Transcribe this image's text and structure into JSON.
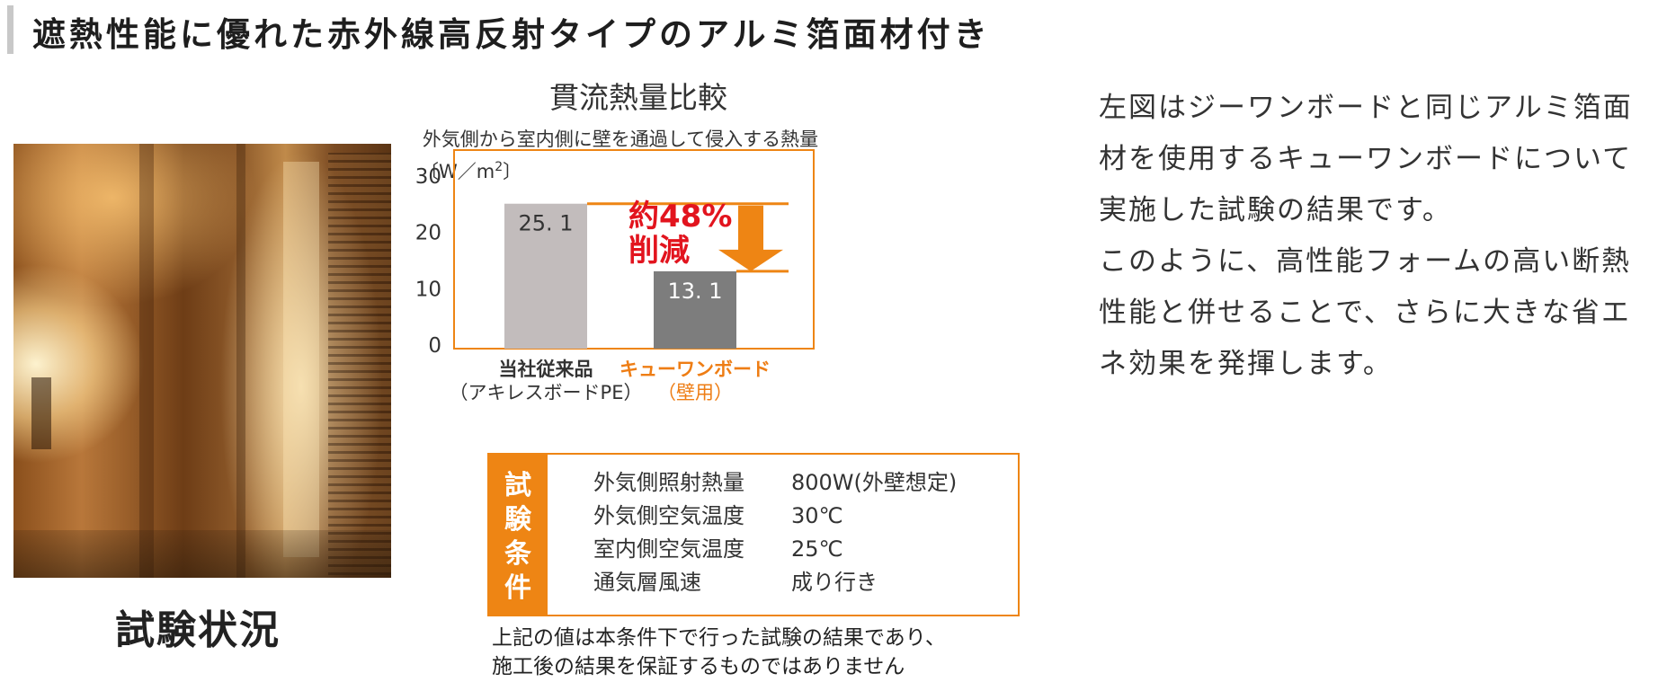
{
  "header": {
    "title": "遮熱性能に優れた赤外線高反射タイプのアルミ箔面材付き"
  },
  "photo": {
    "caption": "試験状況"
  },
  "chart_data": {
    "type": "bar",
    "title": "貫流熱量比較",
    "subtitle": "外気側から室内側に壁を通過して侵入する熱量",
    "ylabel_parts": {
      "a": "〔W／m",
      "b": "2",
      "c": "〕"
    },
    "ylim": [
      0,
      30
    ],
    "yticks": [
      "30",
      "20",
      "10",
      "0"
    ],
    "bars": [
      {
        "label_line1": "当社従来品",
        "label_line2": "（アキレスボードPE）",
        "value": 25.1,
        "value_label": "25. 1",
        "color": "#c2bcbc",
        "label_color": "#333333"
      },
      {
        "label_line1": "キューワンボード",
        "label_line2": "（壁用）",
        "value": 13.1,
        "value_label": "13. 1",
        "color": "#7d7d7d",
        "label_color": "#ee7d14"
      }
    ],
    "reduction": {
      "line1": "約48%",
      "line2": "削減",
      "color": "#e2141e",
      "arrow_color": "#ee8514"
    },
    "accent_color": "#ee8514"
  },
  "conditions": {
    "title_chars": [
      "試",
      "験",
      "条",
      "件"
    ],
    "rows": [
      {
        "label": "外気側照射熱量",
        "value": "800W(外壁想定)"
      },
      {
        "label": "外気側空気温度",
        "value": "30℃"
      },
      {
        "label": "室内側空気温度",
        "value": "25℃"
      },
      {
        "label": "通気層風速",
        "value": "成り行き"
      }
    ]
  },
  "note": {
    "line1": "上記の値は本条件下で行った試験の結果であり、",
    "line2": "施工後の結果を保証するものではありません"
  },
  "description": {
    "lines": [
      "左図はジーワンボードと同じアルミ箔面",
      "材を使用するキューワンボードについて",
      "実施した試験の結果です。",
      "このように、高性能フォームの高い断熱",
      "性能と併せることで、さらに大きな省エ",
      "ネ効果を発揮します。"
    ]
  }
}
